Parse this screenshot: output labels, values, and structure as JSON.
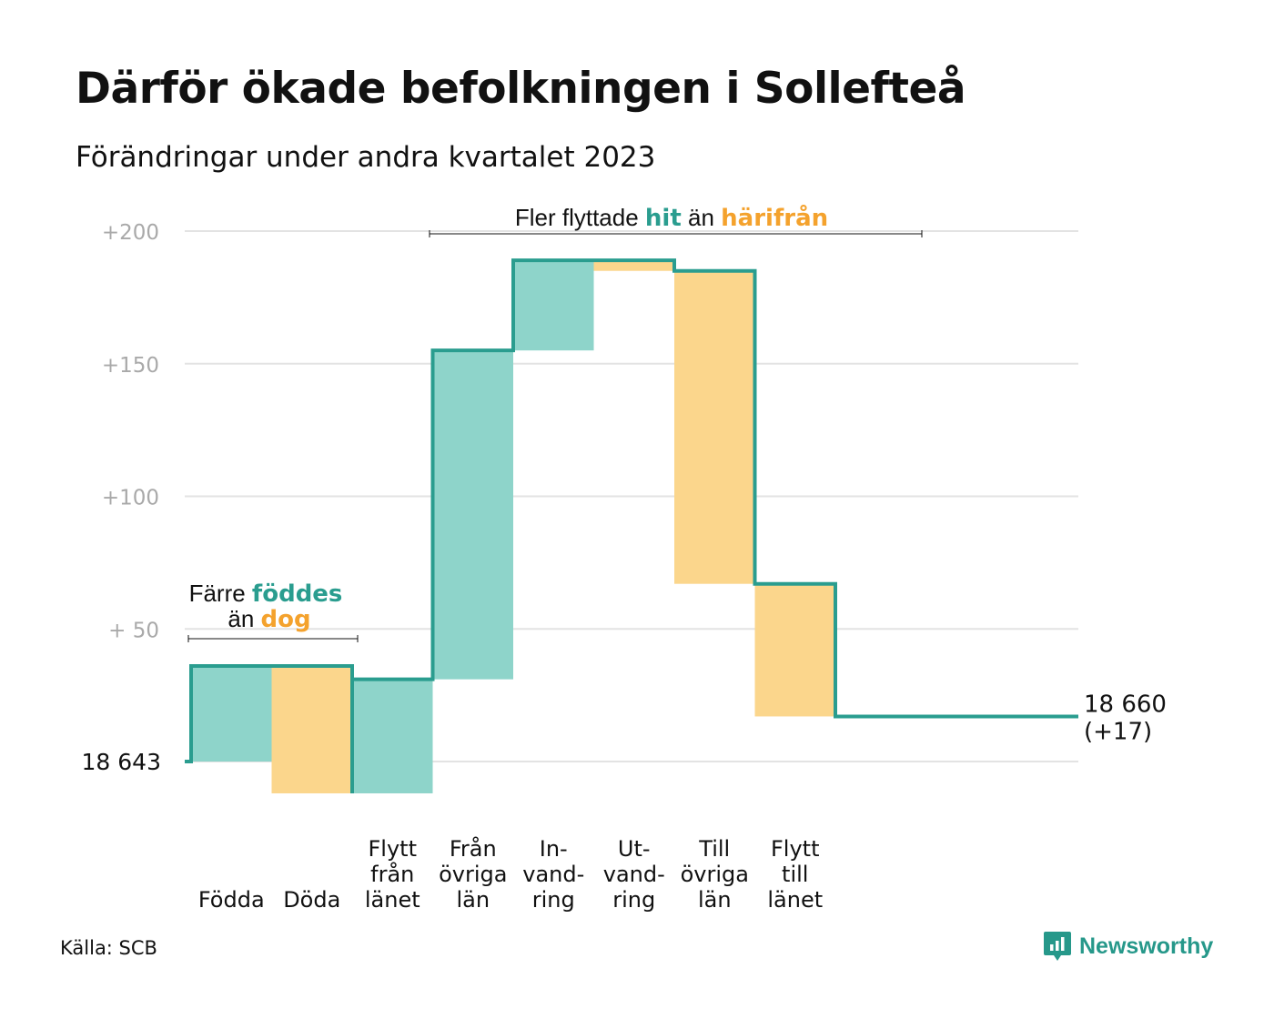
{
  "title": "Därför ökade befolkningen i Sollefteå",
  "subtitle": "Förändringar under andra kvartalet 2023",
  "source": "Källa: SCB",
  "brand": "Newsworthy",
  "colors": {
    "positive": "#2a9d8f",
    "positive_fill": "#8ed4ca",
    "negative_fill": "#fbd68c",
    "accent_orange": "#f4a22d",
    "grid": "#e3e3e3",
    "tick": "#a9a9a9",
    "brand": "#26988a"
  },
  "annotations": {
    "births": {
      "prefix": "Färre ",
      "highlight1": "föddes",
      "mid": "än ",
      "highlight2": "dog"
    },
    "moves": {
      "prefix": "Fler flyttade ",
      "highlight1": "hit",
      "mid": " än ",
      "highlight2": "härifrån"
    }
  },
  "chart_data": {
    "type": "waterfall",
    "start_label": "18  643",
    "end_label": [
      "18 660",
      "(+17)"
    ],
    "y_ticks": [
      {
        "value": 200,
        "label": "+200"
      },
      {
        "value": 150,
        "label": "+150"
      },
      {
        "value": 100,
        "label": "+100"
      },
      {
        "value": 50,
        "label": "+  50"
      }
    ],
    "ylim": [
      -20,
      205
    ],
    "baseline": 0,
    "final": 17,
    "steps": [
      {
        "label": [
          "Födda"
        ],
        "change": 36
      },
      {
        "label": [
          "Döda"
        ],
        "change": -48
      },
      {
        "label": [
          "Flytt",
          "från",
          "länet"
        ],
        "change": 43
      },
      {
        "label": [
          "Från",
          "övriga",
          "län"
        ],
        "change": 124
      },
      {
        "label": [
          "In-",
          "vand-",
          "ring"
        ],
        "change": 34
      },
      {
        "label": [
          "Ut-",
          "vand-",
          "ring"
        ],
        "change": -4
      },
      {
        "label": [
          "Till",
          "övriga",
          "län"
        ],
        "change": -118
      },
      {
        "label": [
          "Flytt",
          "till",
          "länet"
        ],
        "change": -50
      }
    ]
  }
}
